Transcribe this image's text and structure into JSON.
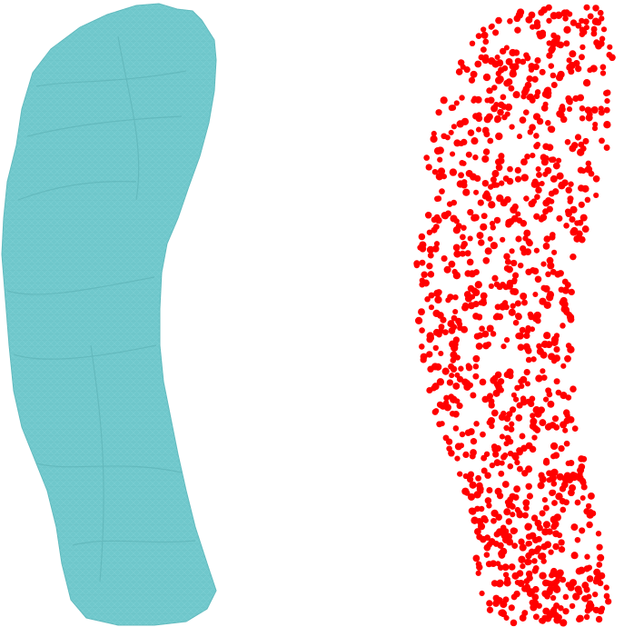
{
  "figure": {
    "panels": [
      {
        "kind": "surface-mesh",
        "color": "#70c8cc",
        "edge_color": "#5fb9bd"
      },
      {
        "kind": "point-cloud",
        "color": "#ff0000"
      }
    ],
    "background": "#ffffff"
  }
}
